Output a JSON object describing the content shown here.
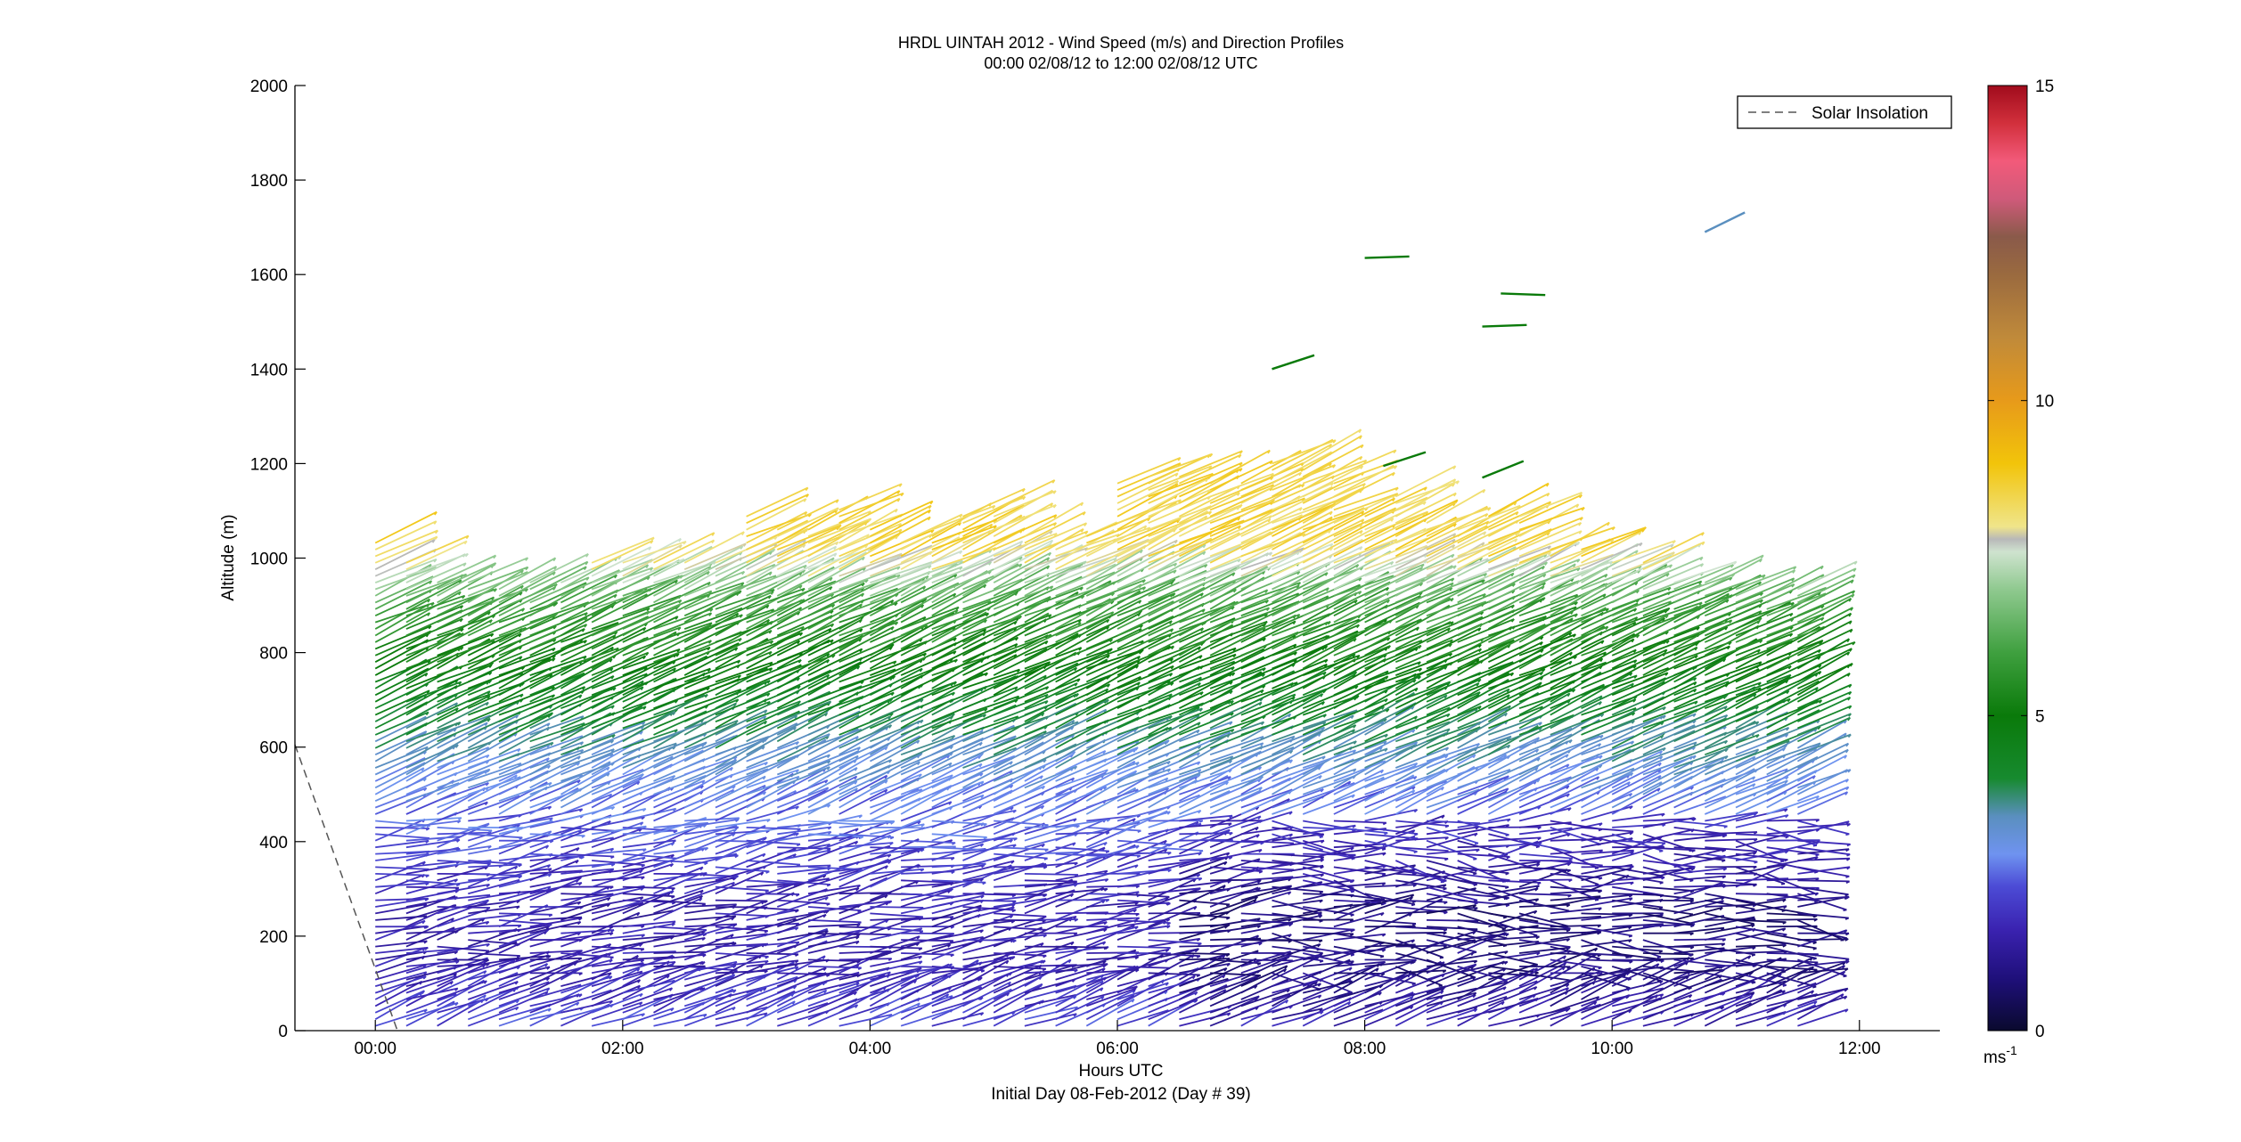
{
  "chart_data": {
    "type": "wind-barb-profile",
    "title": "HRDL UINTAH 2012 - Wind Speed (m/s) and Direction Profiles",
    "subtitle": "00:00 02/08/12 to 12:00 02/08/12  UTC",
    "xlabel": "Hours UTC",
    "xlabel2": "Initial Day 08-Feb-2012 (Day # 39)",
    "ylabel": "Altitude (m)",
    "xlim_hours": [
      -0.65,
      12.65
    ],
    "ylim": [
      0,
      2000
    ],
    "xticks": [
      {
        "h": 0,
        "label": "00:00"
      },
      {
        "h": 2,
        "label": "02:00"
      },
      {
        "h": 4,
        "label": "04:00"
      },
      {
        "h": 6,
        "label": "06:00"
      },
      {
        "h": 8,
        "label": "08:00"
      },
      {
        "h": 10,
        "label": "10:00"
      },
      {
        "h": 12,
        "label": "12:00"
      }
    ],
    "yticks": [
      0,
      200,
      400,
      600,
      800,
      1000,
      1200,
      1400,
      1600,
      1800,
      2000
    ],
    "legend": {
      "label": "Solar Insolation",
      "placement": "top-right",
      "style": "dashed"
    },
    "colorbar": {
      "ticks": [
        0,
        5,
        10,
        15
      ],
      "unit": "ms",
      "unit_exp": "-1",
      "range": [
        0,
        15
      ],
      "stops": [
        {
          "v": 0,
          "c": "#0a0a2e"
        },
        {
          "v": 0.8,
          "c": "#1e0f78"
        },
        {
          "v": 1.6,
          "c": "#3a22b0"
        },
        {
          "v": 2.3,
          "c": "#4c4cd6"
        },
        {
          "v": 2.8,
          "c": "#6f93f0"
        },
        {
          "v": 3.4,
          "c": "#5a8fbf"
        },
        {
          "v": 4.0,
          "c": "#178a2f"
        },
        {
          "v": 5.0,
          "c": "#0a7a0a"
        },
        {
          "v": 6.0,
          "c": "#3fa03f"
        },
        {
          "v": 7.0,
          "c": "#8fc98f"
        },
        {
          "v": 7.6,
          "c": "#cfe3cf"
        },
        {
          "v": 7.8,
          "c": "#b8b8b8"
        },
        {
          "v": 8.0,
          "c": "#f0e58a"
        },
        {
          "v": 9.0,
          "c": "#f2c40a"
        },
        {
          "v": 10.0,
          "c": "#e79a1a"
        },
        {
          "v": 11.0,
          "c": "#c08a3a"
        },
        {
          "v": 12.0,
          "c": "#9a6a3f"
        },
        {
          "v": 12.6,
          "c": "#8a5a4a"
        },
        {
          "v": 13.2,
          "c": "#cf5a7a"
        },
        {
          "v": 13.8,
          "c": "#f25a7a"
        },
        {
          "v": 14.4,
          "c": "#d2303c"
        },
        {
          "v": 15,
          "c": "#a00b1c"
        }
      ]
    },
    "solar_insolation": [
      [
        -0.65,
        600
      ],
      [
        0.05,
        0
      ]
    ],
    "profile_hours": [
      0.0,
      0.25,
      0.5,
      0.75,
      1.0,
      1.25,
      1.5,
      1.75,
      2.0,
      2.25,
      2.5,
      2.75,
      3.0,
      3.25,
      3.5,
      3.75,
      4.0,
      4.25,
      4.5,
      4.75,
      5.0,
      5.25,
      5.5,
      5.75,
      6.0,
      6.25,
      6.5,
      6.75,
      7.0,
      7.25,
      7.5,
      7.75,
      8.0,
      8.25,
      8.5,
      8.75,
      9.0,
      9.25,
      9.5,
      9.75,
      10.0,
      10.25,
      10.5,
      10.75,
      11.0,
      11.25,
      11.5
    ],
    "profile_tops_m": [
      1040,
      1000,
      960,
      960,
      940,
      960,
      960,
      990,
      1000,
      1000,
      1000,
      1000,
      1090,
      1060,
      1060,
      1110,
      1070,
      1040,
      1070,
      1090,
      1110,
      1050,
      1030,
      1050,
      1160,
      1180,
      1180,
      1170,
      1160,
      1200,
      1210,
      1180,
      1100,
      1130,
      1080,
      1060,
      1090,
      1100,
      1030,
      1020,
      1000,
      990,
      950,
      960,
      940,
      930,
      940
    ],
    "speed_profile_ms": [
      {
        "altitude_m": 10,
        "speed": 2.2
      },
      {
        "altitude_m": 100,
        "speed": 1.6
      },
      {
        "altitude_m": 250,
        "speed": 1.5
      },
      {
        "altitude_m": 400,
        "speed": 2.3
      },
      {
        "altitude_m": 500,
        "speed": 2.8
      },
      {
        "altitude_m": 600,
        "speed": 3.6
      },
      {
        "altitude_m": 750,
        "speed": 5.0
      },
      {
        "altitude_m": 900,
        "speed": 6.2
      },
      {
        "altitude_m": 1000,
        "speed": 8.5
      }
    ],
    "isolated_barbs": [
      {
        "h": 8.0,
        "alt_m": 1635,
        "dir": 2,
        "speed": 5.0
      },
      {
        "h": 7.25,
        "alt_m": 1400,
        "dir": 18,
        "speed": 5.0
      },
      {
        "h": 9.1,
        "alt_m": 1560,
        "dir": -2,
        "speed": 5.0
      },
      {
        "h": 8.95,
        "alt_m": 1490,
        "dir": 2,
        "speed": 5.0
      },
      {
        "h": 10.75,
        "alt_m": 1690,
        "dir": 26,
        "speed": 3.4
      },
      {
        "h": 8.15,
        "alt_m": 1195,
        "dir": 18,
        "speed": 5.0
      },
      {
        "h": 8.95,
        "alt_m": 1170,
        "dir": 22,
        "speed": 5.0
      }
    ]
  }
}
